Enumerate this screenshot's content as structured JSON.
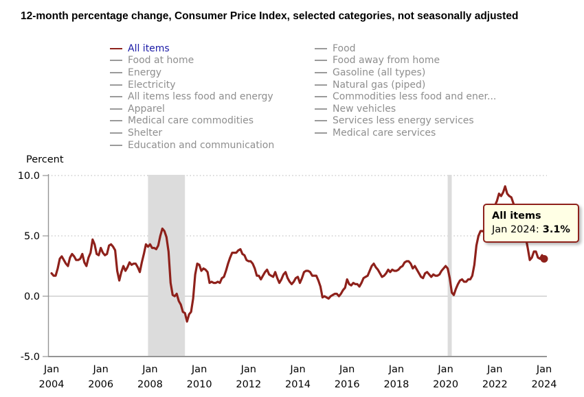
{
  "title": "12-month percentage change, Consumer Price Index, selected categories, not seasonally adjusted",
  "ylabel": "Percent",
  "legend": {
    "left": [
      {
        "label": "All items",
        "active": true
      },
      {
        "label": "Food at home"
      },
      {
        "label": "Energy"
      },
      {
        "label": "Electricity"
      },
      {
        "label": "All items less food and energy"
      },
      {
        "label": "Apparel"
      },
      {
        "label": "Medical care commodities"
      },
      {
        "label": "Shelter"
      },
      {
        "label": "Education and communication"
      }
    ],
    "right": [
      {
        "label": "Food"
      },
      {
        "label": "Food away from home"
      },
      {
        "label": "Gasoline (all types)"
      },
      {
        "label": "Natural gas (piped)"
      },
      {
        "label": "Commodities less food and ener..."
      },
      {
        "label": "New vehicles"
      },
      {
        "label": "Services less energy services"
      },
      {
        "label": "Medical care services"
      }
    ]
  },
  "tooltip": {
    "series": "All items",
    "label": "Jan 2024:",
    "value": "3.1%"
  },
  "colors": {
    "line": "#8e211b",
    "active_legend_text": "#1a1aa6",
    "inactive_legend": "#8e8e8e",
    "recession_band": "#dcdcdc",
    "grid_dotted": "#cfcfcf",
    "grid_zero": "#c3c3c3",
    "axis": "#949494",
    "tooltip_bg": "#ffffe5"
  },
  "chart_data": {
    "type": "line",
    "title": "12-month percentage change, Consumer Price Index, selected categories, not seasonally adjusted",
    "ylabel": "Percent",
    "xlabel": "",
    "ylim": [
      -5.0,
      10.0
    ],
    "yticks": [
      10.0,
      5.0,
      0.0,
      -5.0
    ],
    "xticks": [
      "Jan 2004",
      "Jan 2006",
      "Jan 2008",
      "Jan 2010",
      "Jan 2012",
      "Jan 2014",
      "Jan 2016",
      "Jan 2018",
      "Jan 2020",
      "Jan 2022",
      "Jan 2024"
    ],
    "grid": true,
    "legend_position": "top",
    "recession_bands": [
      {
        "start": "2007-12",
        "end": "2009-06"
      },
      {
        "start": "2020-02",
        "end": "2020-04"
      }
    ],
    "x_start": "2004-01",
    "x_end": "2024-01",
    "frequency": "monthly",
    "series": [
      {
        "name": "All items",
        "values": [
          1.9,
          1.7,
          1.7,
          2.3,
          3.1,
          3.3,
          3.0,
          2.7,
          2.5,
          3.2,
          3.5,
          3.3,
          3.0,
          3.0,
          3.1,
          3.5,
          2.8,
          2.5,
          3.2,
          3.6,
          4.7,
          4.3,
          3.5,
          3.4,
          4.0,
          3.6,
          3.4,
          3.5,
          4.2,
          4.3,
          4.1,
          3.8,
          2.1,
          1.3,
          2.0,
          2.5,
          2.1,
          2.4,
          2.8,
          2.6,
          2.7,
          2.7,
          2.4,
          2.0,
          2.8,
          3.5,
          4.3,
          4.1,
          4.3,
          4.0,
          4.0,
          3.9,
          4.2,
          5.0,
          5.6,
          5.4,
          4.9,
          3.7,
          1.1,
          0.1,
          0.0,
          0.2,
          -0.4,
          -0.7,
          -1.3,
          -1.4,
          -2.1,
          -1.5,
          -1.3,
          -0.2,
          1.8,
          2.7,
          2.6,
          2.1,
          2.3,
          2.2,
          2.0,
          1.1,
          1.2,
          1.1,
          1.1,
          1.2,
          1.1,
          1.5,
          1.6,
          2.1,
          2.7,
          3.2,
          3.6,
          3.6,
          3.6,
          3.8,
          3.9,
          3.5,
          3.4,
          3.0,
          2.9,
          2.9,
          2.7,
          2.3,
          1.7,
          1.7,
          1.4,
          1.7,
          2.0,
          2.2,
          1.8,
          1.7,
          1.6,
          2.0,
          1.5,
          1.1,
          1.4,
          1.8,
          2.0,
          1.5,
          1.2,
          1.0,
          1.2,
          1.5,
          1.6,
          1.1,
          1.5,
          2.0,
          2.1,
          2.1,
          2.0,
          1.7,
          1.7,
          1.7,
          1.3,
          0.8,
          -0.1,
          0.0,
          -0.1,
          -0.2,
          0.0,
          0.1,
          0.2,
          0.2,
          0.0,
          0.2,
          0.5,
          0.7,
          1.4,
          1.0,
          0.9,
          1.1,
          1.0,
          1.0,
          0.8,
          1.1,
          1.5,
          1.6,
          1.7,
          2.1,
          2.5,
          2.7,
          2.4,
          2.2,
          1.9,
          1.6,
          1.7,
          1.9,
          2.2,
          2.0,
          2.2,
          2.1,
          2.1,
          2.2,
          2.4,
          2.5,
          2.8,
          2.9,
          2.9,
          2.7,
          2.3,
          2.5,
          2.2,
          1.9,
          1.6,
          1.5,
          1.9,
          2.0,
          1.8,
          1.6,
          1.8,
          1.7,
          1.7,
          1.8,
          2.1,
          2.3,
          2.5,
          2.3,
          1.5,
          0.3,
          0.1,
          0.6,
          1.0,
          1.3,
          1.4,
          1.2,
          1.2,
          1.4,
          1.4,
          1.7,
          2.6,
          4.2,
          5.0,
          5.4,
          5.4,
          5.3,
          5.4,
          6.2,
          6.8,
          7.0,
          7.5,
          7.9,
          8.5,
          8.3,
          8.6,
          9.1,
          8.5,
          8.3,
          8.2,
          7.7,
          7.1,
          6.5,
          6.4,
          6.0,
          5.0,
          4.9,
          4.0,
          3.0,
          3.2,
          3.7,
          3.7,
          3.2,
          3.1,
          3.4,
          3.1
        ]
      }
    ],
    "end_point_label": "Jan 2024: 3.1%"
  }
}
